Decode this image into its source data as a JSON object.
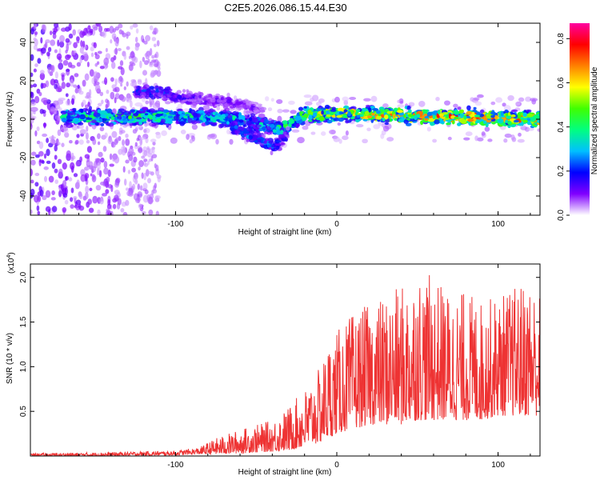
{
  "title": "C2E5.2026.086.15.44.E30",
  "chart_data": [
    {
      "type": "heatmap",
      "panel": "spectrogram",
      "xlabel": "Height of straight line (km)",
      "ylabel": "Frequency (Hz)",
      "xlim": [
        -190,
        126
      ],
      "ylim": [
        -50,
        50
      ],
      "xticks": [
        -100,
        0,
        100
      ],
      "yticks": [
        -40,
        -20,
        0,
        20,
        40
      ],
      "colorbar": {
        "label": "Normalized spectral amplitude",
        "range": [
          0,
          0.87
        ],
        "ticks": [
          0.0,
          0.2,
          0.4,
          0.6,
          0.8
        ],
        "colors": [
          "#ffffff",
          "#8000ff",
          "#0000ff",
          "#00c0ff",
          "#00ff80",
          "#40ff00",
          "#ffff00",
          "#ff8000",
          "#ff0000",
          "#ff00a0"
        ]
      },
      "ridges": [
        {
          "name": "main band",
          "x": [
            -170,
            -120,
            -80,
            -60,
            -45,
            -35,
            -20,
            0,
            40,
            80,
            126
          ],
          "y": [
            1,
            1,
            1,
            0,
            -3,
            -5,
            2,
            3,
            2,
            1,
            0
          ],
          "amplitude": [
            0.35,
            0.4,
            0.35,
            0.3,
            0.3,
            0.35,
            0.5,
            0.55,
            0.6,
            0.65,
            0.6
          ]
        },
        {
          "name": "upper band",
          "x": [
            -125,
            -110,
            -95,
            -80,
            -60,
            -45
          ],
          "y": [
            14,
            14,
            11,
            10,
            8,
            4
          ],
          "amplitude": [
            0.2,
            0.22,
            0.15,
            0.12,
            0.1,
            0.1
          ]
        },
        {
          "name": "dip",
          "x": [
            -65,
            -55,
            -45,
            -38,
            -30
          ],
          "y": [
            -4,
            -8,
            -12,
            -14,
            -8
          ],
          "amplitude": [
            0.2,
            0.25,
            0.25,
            0.2,
            0.15
          ]
        }
      ]
    },
    {
      "type": "line",
      "panel": "snr",
      "xlabel": "Height of straight line (km)",
      "ylabel": "SNR (10 * v/v)",
      "yscale_label": "(x10",
      "yscale_exponent": "4",
      "xlim": [
        -190,
        126
      ],
      "ylim": [
        0,
        2.15
      ],
      "xticks": [
        -100,
        0,
        100
      ],
      "yticks": [
        0.5,
        1.0,
        1.5,
        2.0
      ],
      "ytick_labels": [
        "0.5",
        "1.0",
        "1.5",
        "2.0"
      ],
      "color": "#ee3333",
      "envelope": {
        "x": [
          -190,
          -150,
          -100,
          -85,
          -75,
          -60,
          -50,
          -40,
          -30,
          -20,
          -10,
          -5,
          0,
          10,
          20,
          30,
          40,
          50,
          60,
          70,
          80,
          90,
          100,
          110,
          120,
          126
        ],
        "min": [
          0.0,
          0.0,
          0.01,
          0.02,
          0.02,
          0.03,
          0.04,
          0.05,
          0.06,
          0.1,
          0.15,
          0.2,
          0.25,
          0.3,
          0.35,
          0.35,
          0.35,
          0.4,
          0.4,
          0.4,
          0.4,
          0.4,
          0.45,
          0.45,
          0.45,
          0.45
        ],
        "max": [
          0.03,
          0.04,
          0.06,
          0.1,
          0.2,
          0.3,
          0.35,
          0.4,
          0.55,
          0.75,
          1.0,
          1.3,
          1.4,
          1.6,
          1.7,
          1.8,
          1.9,
          2.1,
          2.0,
          1.85,
          1.85,
          1.75,
          1.8,
          1.9,
          2.0,
          1.85
        ]
      }
    }
  ]
}
